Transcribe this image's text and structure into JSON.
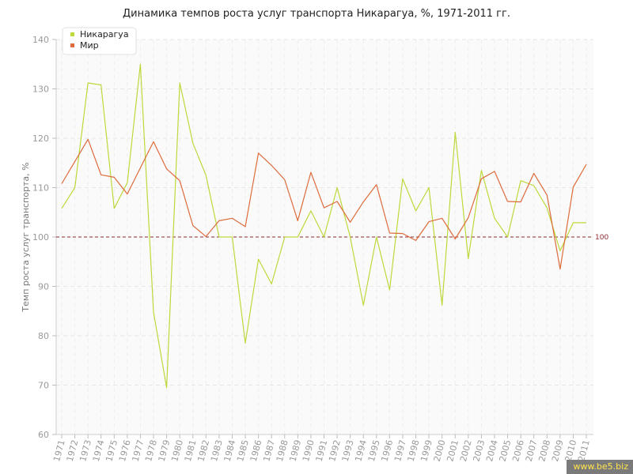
{
  "chart_data": {
    "type": "line",
    "title": "Динамика темпов роста услуг транспорта Никарагуа, %, 1971-2011 гг.",
    "ylabel": "Темп роста услуг транспорта, %",
    "xlabel": "",
    "ylim": [
      60,
      140
    ],
    "yticks": [
      60,
      70,
      80,
      90,
      100,
      110,
      120,
      130,
      140
    ],
    "grid": true,
    "legend_position": "top-left",
    "x": [
      "1971",
      "1972",
      "1973",
      "1974",
      "1975",
      "1976",
      "1977",
      "1978",
      "1979",
      "1980",
      "1981",
      "1982",
      "1983",
      "1984",
      "1985",
      "1986",
      "1987",
      "1988",
      "1989",
      "1990",
      "1991",
      "1992",
      "1993",
      "1994",
      "1995",
      "1996",
      "1997",
      "1998",
      "1999",
      "2000",
      "2001",
      "2002",
      "2003",
      "2004",
      "2005",
      "2006",
      "2007",
      "2008",
      "2009",
      "2010",
      "2011"
    ],
    "series": [
      {
        "name": "Никарагуа",
        "color": "#bcd93a",
        "values": [
          105.8,
          110.0,
          131.2,
          130.8,
          105.8,
          111.0,
          135.0,
          84.8,
          69.5,
          131.2,
          119.0,
          112.5,
          100.0,
          100.0,
          78.5,
          95.5,
          90.5,
          100.0,
          100.0,
          105.3,
          100.0,
          110.0,
          100.0,
          86.2,
          100.0,
          89.3,
          111.8,
          105.3,
          110.0,
          86.2,
          121.2,
          95.6,
          113.5,
          103.8,
          100.0,
          111.4,
          110.4,
          105.9,
          97.2,
          102.9,
          102.9
        ]
      },
      {
        "name": "Мир",
        "color": "#dd6b3c",
        "values": [
          110.8,
          115.3,
          119.8,
          112.6,
          112.1,
          108.7,
          114.0,
          119.3,
          113.8,
          111.4,
          102.3,
          100.1,
          103.3,
          103.8,
          102.1,
          117.0,
          114.5,
          111.6,
          103.3,
          113.1,
          105.9,
          107.2,
          103.0,
          107.1,
          110.6,
          100.8,
          100.7,
          99.3,
          103.1,
          103.8,
          99.6,
          103.9,
          111.8,
          113.3,
          107.2,
          107.1,
          112.9,
          108.5,
          93.5,
          110.1,
          114.7
        ]
      }
    ],
    "reference_line": {
      "value": 100,
      "label": "100",
      "color": "#8b2a2a"
    }
  },
  "watermark": "www.be5.biz"
}
